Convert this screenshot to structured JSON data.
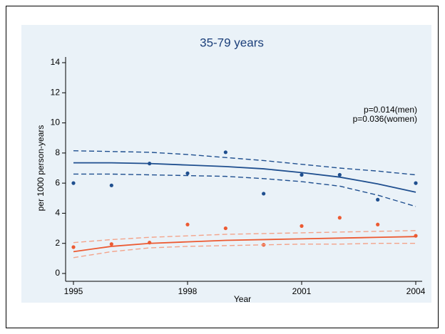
{
  "chart_data": {
    "type": "line",
    "title": "35-79 years",
    "xlabel": "Year",
    "ylabel": "per 1000 person-years",
    "annotations": [
      "p=0.014(men)",
      "p=0.036(women)"
    ],
    "x": [
      1995,
      1996,
      1997,
      1998,
      1999,
      2000,
      2001,
      2002,
      2003,
      2004
    ],
    "xlim": [
      1995,
      2004
    ],
    "xticks": [
      1995,
      1998,
      2001,
      2004
    ],
    "ylim": [
      0,
      14
    ],
    "yticks": [
      0,
      2,
      4,
      6,
      8,
      10,
      12,
      14
    ],
    "series": [
      {
        "style": "markers",
        "color": "#1f4f8f",
        "values": [
          6.0,
          5.85,
          7.3,
          6.65,
          8.05,
          5.3,
          6.55,
          6.55,
          4.9,
          6.0
        ]
      },
      {
        "style": "solid",
        "color": "#1f4f8f",
        "values": [
          7.35,
          7.35,
          7.3,
          7.2,
          7.1,
          6.95,
          6.7,
          6.4,
          5.95,
          5.4
        ]
      },
      {
        "style": "dashed",
        "color": "#1f4f8f",
        "values": [
          8.15,
          8.1,
          8.05,
          7.9,
          7.7,
          7.5,
          7.25,
          7.0,
          6.8,
          6.55
        ]
      },
      {
        "style": "dashed",
        "color": "#1f4f8f",
        "values": [
          6.6,
          6.6,
          6.55,
          6.5,
          6.45,
          6.3,
          6.1,
          5.8,
          5.2,
          4.45
        ]
      },
      {
        "style": "markers",
        "color": "#ec5a32",
        "values": [
          1.75,
          1.95,
          2.05,
          3.25,
          3.0,
          1.9,
          3.15,
          3.7,
          3.25,
          2.5
        ]
      },
      {
        "style": "solid",
        "color": "#ec5a32",
        "values": [
          1.45,
          1.8,
          2.0,
          2.1,
          2.2,
          2.25,
          2.3,
          2.35,
          2.4,
          2.45
        ]
      },
      {
        "style": "dashed",
        "color": "#f3a38a",
        "values": [
          2.05,
          2.25,
          2.4,
          2.5,
          2.6,
          2.65,
          2.7,
          2.75,
          2.8,
          2.85
        ]
      },
      {
        "style": "dashed",
        "color": "#f3a38a",
        "values": [
          1.05,
          1.45,
          1.7,
          1.8,
          1.85,
          1.9,
          1.95,
          1.95,
          2.0,
          2.0
        ]
      }
    ]
  }
}
